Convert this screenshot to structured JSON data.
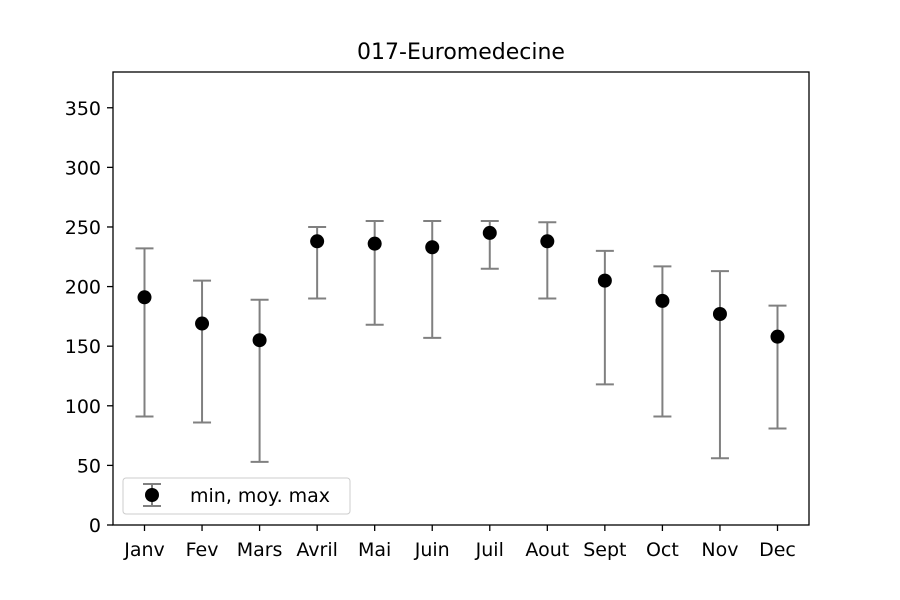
{
  "chart_data": {
    "type": "scatter",
    "title": "017-Euromedecine",
    "xlabel": "",
    "ylabel": "",
    "categories": [
      "Janv",
      "Fev",
      "Mars",
      "Avril",
      "Mai",
      "Juin",
      "Juil",
      "Aout",
      "Sept",
      "Oct",
      "Nov",
      "Dec"
    ],
    "series": [
      {
        "name": "min, moy. max",
        "mean": [
          191,
          169,
          155,
          238,
          236,
          233,
          245,
          238,
          205,
          188,
          177,
          158
        ],
        "min": [
          91,
          86,
          53,
          190,
          168,
          157,
          215,
          190,
          118,
          91,
          56,
          81
        ],
        "max": [
          232,
          205,
          189,
          250,
          255,
          255,
          255,
          254,
          230,
          217,
          213,
          184
        ]
      }
    ],
    "yticks": [
      0,
      50,
      100,
      150,
      200,
      250,
      300,
      350
    ],
    "ylim": [
      0,
      380
    ],
    "grid": false,
    "legend_position": "lower-left",
    "colors": {
      "marker": "#000000",
      "errorbar": "#808080",
      "axis": "#000000"
    }
  }
}
